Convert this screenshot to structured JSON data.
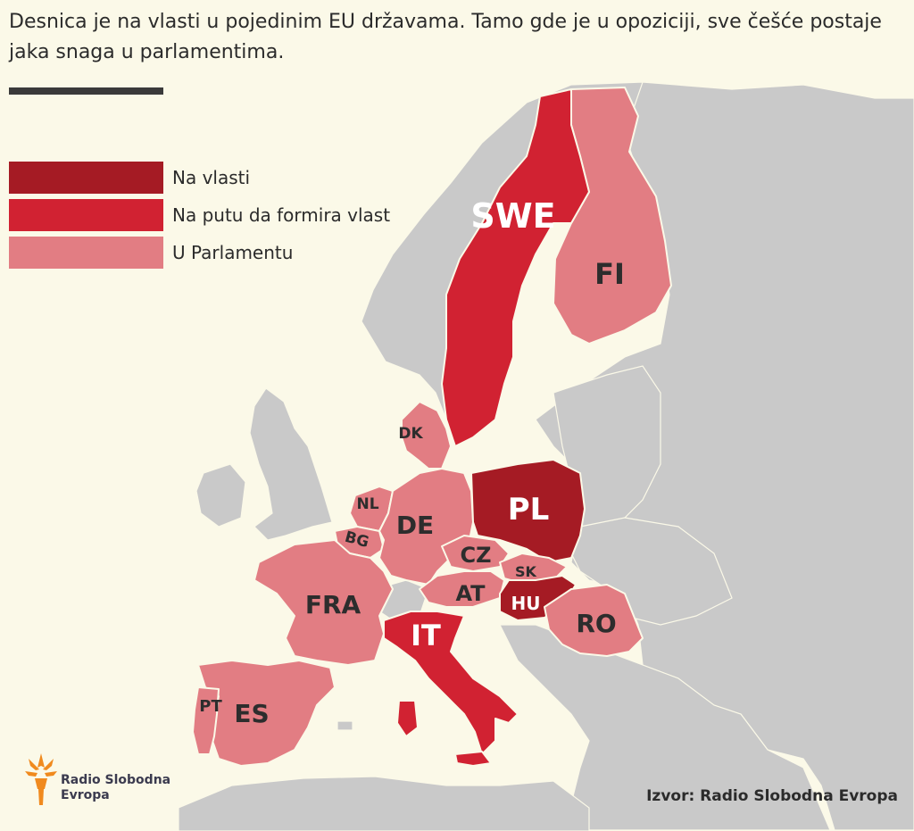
{
  "title": "Desnica je na vlasti u pojedinim EU državama. Tamo gde je u opoziciji, sve češće postaje jaka snaga u parlamentima.",
  "colors": {
    "background": "#fbf9e8",
    "land_other": "#c9c9c9",
    "na_vlasti": "#a51b24",
    "na_putu": "#d12232",
    "u_parlamentu": "#e27d83"
  },
  "legend": [
    {
      "label": "Na vlasti",
      "color": "#a51b24"
    },
    {
      "label": "Na putu da formira vlast",
      "color": "#d12232"
    },
    {
      "label": "U Parlamentu",
      "color": "#e27d83"
    }
  ],
  "countries": {
    "swe": {
      "label": "SWE",
      "status": "na_putu"
    },
    "fi": {
      "label": "FI",
      "status": "u_parlamentu"
    },
    "dk": {
      "label": "DK",
      "status": "u_parlamentu"
    },
    "nl": {
      "label": "NL",
      "status": "u_parlamentu"
    },
    "bg": {
      "label": "BG",
      "status": "u_parlamentu"
    },
    "de": {
      "label": "DE",
      "status": "u_parlamentu"
    },
    "pl": {
      "label": "PL",
      "status": "na_vlasti"
    },
    "cz": {
      "label": "CZ",
      "status": "u_parlamentu"
    },
    "sk": {
      "label": "SK",
      "status": "u_parlamentu"
    },
    "at": {
      "label": "AT",
      "status": "u_parlamentu"
    },
    "hu": {
      "label": "HU",
      "status": "na_vlasti"
    },
    "fra": {
      "label": "FRA",
      "status": "u_parlamentu"
    },
    "it": {
      "label": "IT",
      "status": "na_putu"
    },
    "ro": {
      "label": "RO",
      "status": "u_parlamentu"
    },
    "pt": {
      "label": "PT",
      "status": "u_parlamentu"
    },
    "es": {
      "label": "ES",
      "status": "u_parlamentu"
    }
  },
  "logo": {
    "line1": "Radio Slobodna",
    "line2": "Evropa",
    "icon": "torch-icon"
  },
  "source": "Izvor: Radio Slobodna Evropa"
}
